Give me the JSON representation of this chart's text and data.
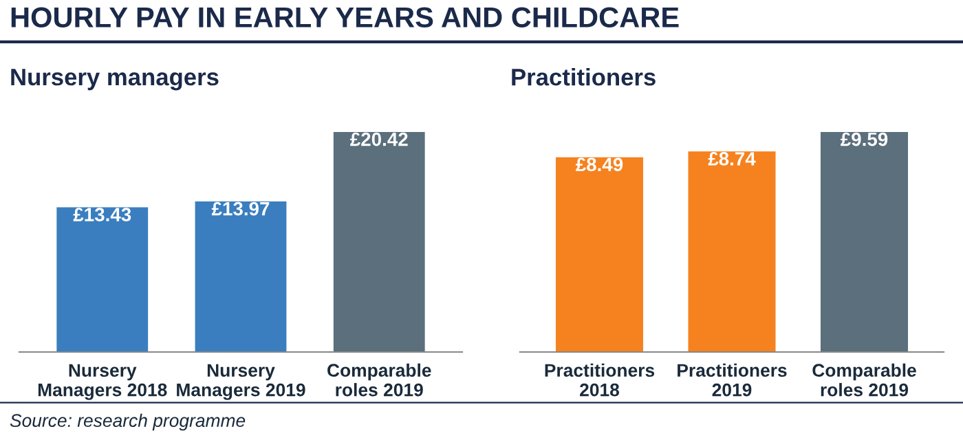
{
  "chart_data": [
    {
      "type": "bar",
      "title": "HOURLY PAY IN EARLY YEARS AND CHILDCARE",
      "subtitle": "Nursery managers",
      "categories": [
        "Nursery\nManagers 2018",
        "Nursery\nManagers 2019",
        "Comparable\nroles 2019"
      ],
      "values": [
        13.43,
        13.97,
        20.42
      ],
      "colors": [
        "#3a7ebf",
        "#3a7ebf",
        "#5b6f7c"
      ],
      "value_labels": [
        "£13.43",
        "£13.97",
        "£20.42"
      ],
      "annotations": [
        "Source: research programme"
      ]
    },
    {
      "type": "bar",
      "title": "Practitioners",
      "categories": [
        "Practitioners\n2018",
        "Practitioners\n2019",
        "Comparable\nroles 2019"
      ],
      "values": [
        8.49,
        8.74,
        9.59
      ],
      "colors": [
        "#f5821f",
        "#f5821f",
        "#5b6f7c"
      ],
      "value_labels": [
        "£8.49",
        "£8.74",
        "£9.59"
      ]
    }
  ]
}
